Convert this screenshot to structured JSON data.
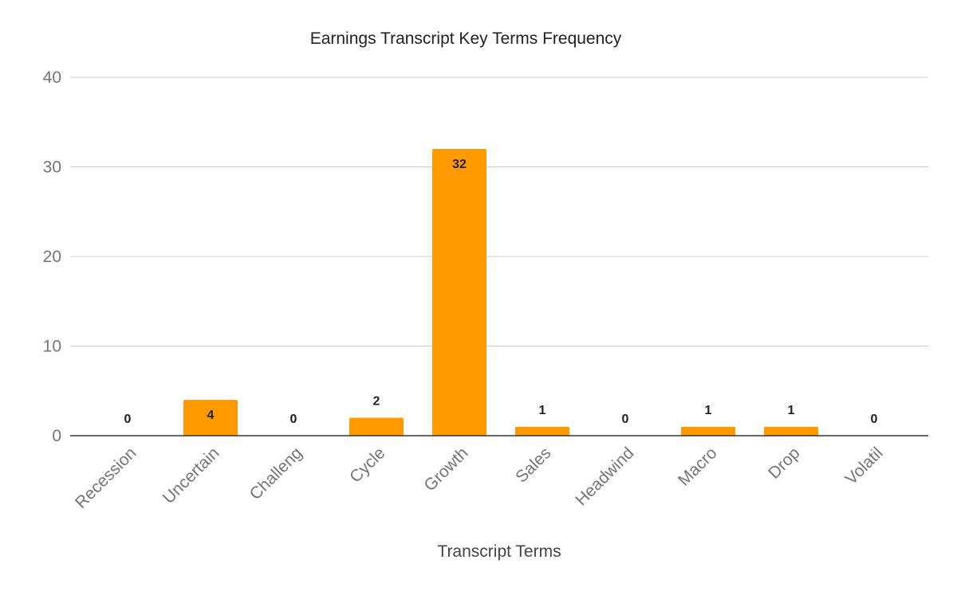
{
  "chart_data": {
    "type": "bar",
    "title": "Earnings Transcript Key Terms Frequency",
    "xlabel": "Transcript Terms",
    "ylabel": "",
    "categories": [
      "Recession",
      "Uncertain",
      "Challeng",
      "Cycle",
      "Growth",
      "Sales",
      "Headwind",
      "Macro",
      "Drop",
      "Volatil"
    ],
    "values": [
      0,
      4,
      0,
      2,
      32,
      1,
      0,
      1,
      1,
      0
    ],
    "ylim": [
      0,
      40
    ],
    "yticks": [
      0,
      10,
      20,
      30,
      40
    ],
    "grid": true,
    "legend": "none",
    "data_labels": true,
    "bar_color": "#ff9900"
  }
}
